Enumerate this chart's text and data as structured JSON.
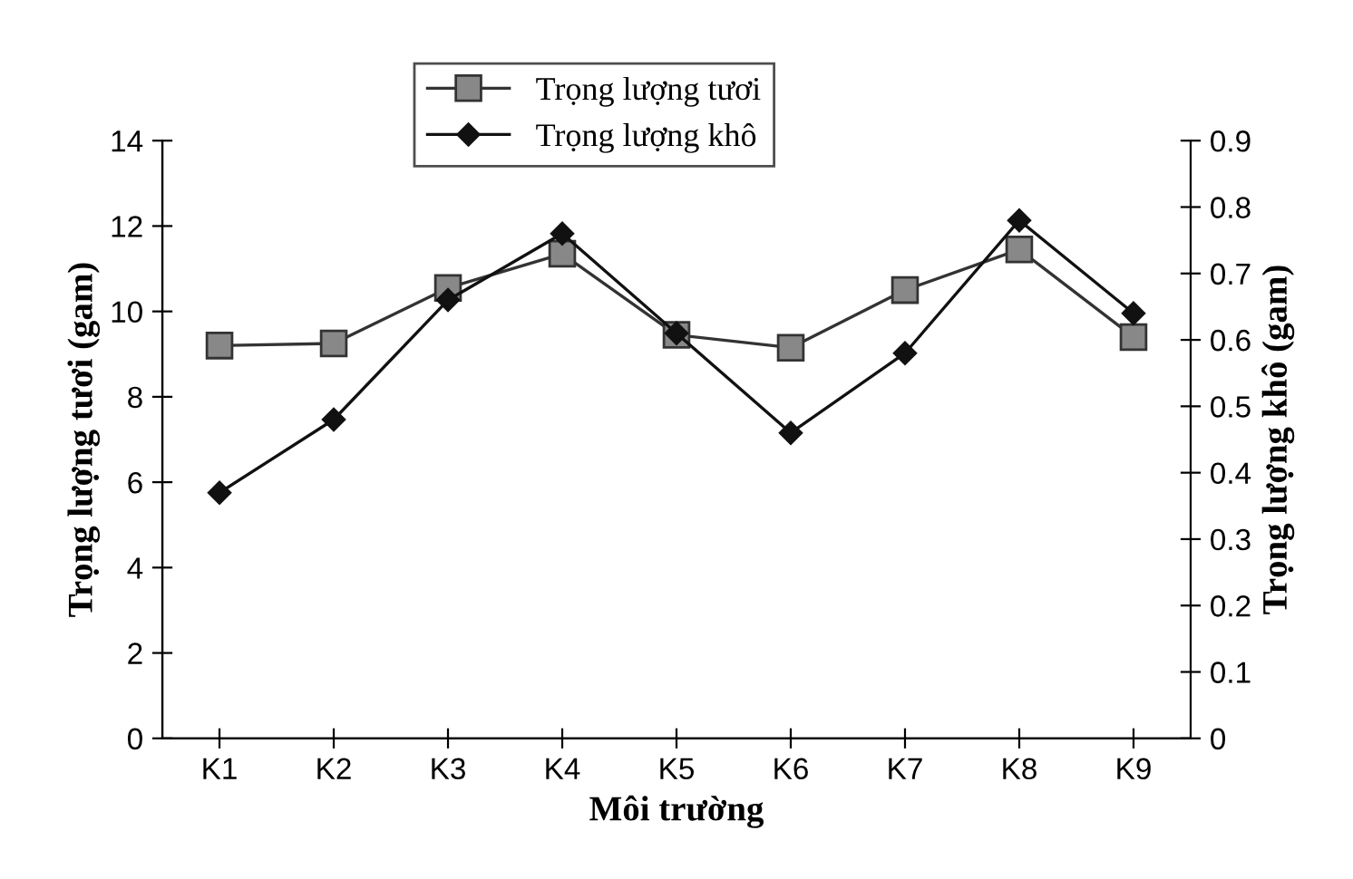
{
  "chart_data": {
    "type": "line",
    "categories": [
      "K1",
      "K2",
      "K3",
      "K4",
      "K5",
      "K6",
      "K7",
      "K8",
      "K9"
    ],
    "xlabel": "Môi trường",
    "ylabel": "Trọng lượng tươi (gam)",
    "y2label": "Trọng lượng khô (gam)",
    "series": [
      {
        "name": "Trọng lượng tươi",
        "color": "#333333",
        "marker": "square",
        "values": [
          9.2,
          9.25,
          10.55,
          11.35,
          9.45,
          9.15,
          10.5,
          11.45,
          9.4
        ]
      },
      {
        "name": "Trọng lượng khô",
        "color": "#111111",
        "marker": "diamond",
        "axis": "y2",
        "values": [
          0.37,
          0.48,
          0.66,
          0.76,
          0.61,
          0.46,
          0.58,
          0.78,
          0.64
        ]
      }
    ],
    "ylim": [
      0,
      14
    ],
    "yticks": [
      0,
      2,
      4,
      6,
      8,
      10,
      12,
      14
    ],
    "y2lim": [
      0,
      0.9
    ],
    "y2ticks": [
      0,
      0.1,
      0.2,
      0.3,
      0.4,
      0.5,
      0.6,
      0.7,
      0.8,
      0.9
    ],
    "legend": "top",
    "grid": false,
    "line_style": "solid"
  }
}
